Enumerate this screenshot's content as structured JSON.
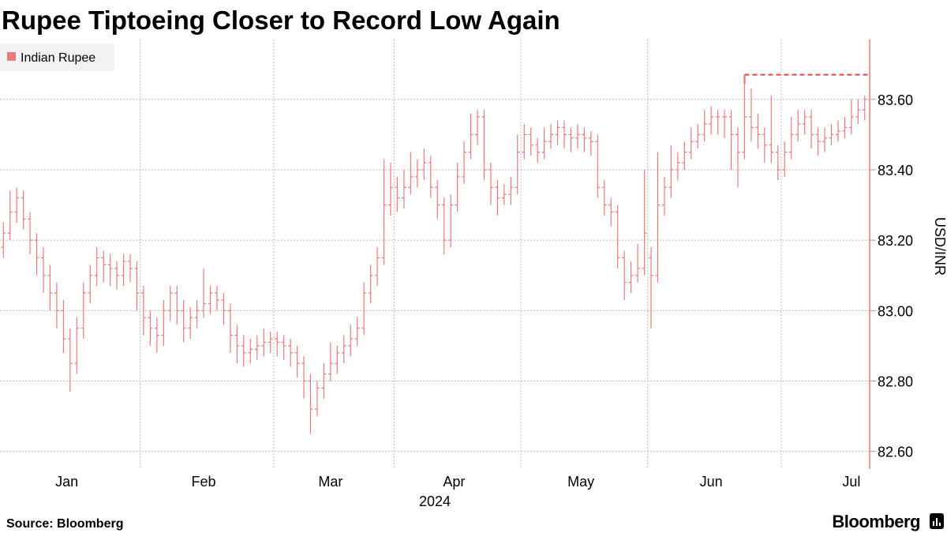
{
  "chart_data": {
    "type": "ohlc",
    "title": "Rupee Tiptoeing Closer to Record Low Again",
    "ylabel": "USD/INR",
    "xlabel": "2024",
    "source": "Source: Bloomberg",
    "brand": "Bloomberg",
    "xlim": [
      -0.5,
      129.5
    ],
    "xticks": [
      {
        "value": 9.5,
        "label": "Jan"
      },
      {
        "value": 30,
        "label": "Feb"
      },
      {
        "value": 49,
        "label": "Mar"
      },
      {
        "value": 67.5,
        "label": "Apr"
      },
      {
        "value": 86.5,
        "label": "May"
      },
      {
        "value": 106,
        "label": "Jun"
      },
      {
        "value": 127,
        "label": "Jul"
      }
    ],
    "xgrid": [
      20.5,
      40.5,
      58.5,
      77.5,
      96.5,
      116.5
    ],
    "ylim": [
      82.55,
      83.77
    ],
    "yticks": [
      {
        "value": 82.6,
        "label": "82.60"
      },
      {
        "value": 82.8,
        "label": "82.80"
      },
      {
        "value": 83.0,
        "label": "83.00"
      },
      {
        "value": 83.2,
        "label": "83.20"
      },
      {
        "value": 83.4,
        "label": "83.40"
      },
      {
        "value": 83.6,
        "label": "83.60"
      }
    ],
    "grid": true,
    "legend": "top-left",
    "record_high": 83.67,
    "record_color": "#e8404a",
    "series": [
      {
        "name": "Indian Rupee",
        "color": "#ec7a7c",
        "values": [
          [
            83.18,
            83.25,
            83.15,
            83.22
          ],
          [
            83.22,
            83.34,
            83.2,
            83.28
          ],
          [
            83.28,
            83.35,
            83.25,
            83.32
          ],
          [
            83.32,
            83.34,
            83.23,
            83.26
          ],
          [
            83.26,
            83.28,
            83.16,
            83.2
          ],
          [
            83.2,
            83.22,
            83.1,
            83.15
          ],
          [
            83.15,
            83.18,
            83.05,
            83.1
          ],
          [
            83.1,
            83.13,
            83.0,
            83.05
          ],
          [
            83.05,
            83.08,
            82.95,
            83.0
          ],
          [
            83.0,
            83.03,
            82.88,
            82.92
          ],
          [
            82.92,
            82.95,
            82.77,
            82.85
          ],
          [
            82.85,
            82.98,
            82.82,
            82.95
          ],
          [
            82.95,
            83.08,
            82.92,
            83.05
          ],
          [
            83.05,
            83.13,
            83.02,
            83.1
          ],
          [
            83.1,
            83.18,
            83.07,
            83.15
          ],
          [
            83.15,
            83.17,
            83.08,
            83.13
          ],
          [
            83.13,
            83.16,
            83.07,
            83.12
          ],
          [
            83.12,
            83.14,
            83.06,
            83.1
          ],
          [
            83.1,
            83.16,
            83.07,
            83.14
          ],
          [
            83.14,
            83.16,
            83.08,
            83.12
          ],
          [
            83.12,
            83.14,
            83.0,
            83.05
          ],
          [
            83.05,
            83.07,
            82.93,
            82.98
          ],
          [
            82.98,
            83.0,
            82.9,
            82.95
          ],
          [
            82.95,
            82.98,
            82.88,
            82.93
          ],
          [
            82.93,
            83.03,
            82.9,
            83.0
          ],
          [
            83.0,
            83.07,
            82.97,
            83.05
          ],
          [
            83.05,
            83.07,
            82.96,
            83.0
          ],
          [
            83.0,
            83.03,
            82.91,
            82.95
          ],
          [
            82.95,
            83.01,
            82.92,
            82.98
          ],
          [
            82.98,
            83.03,
            82.95,
            83.0
          ],
          [
            83.0,
            83.12,
            82.98,
            83.02
          ],
          [
            83.02,
            83.07,
            82.99,
            83.05
          ],
          [
            83.05,
            83.07,
            83.0,
            83.03
          ],
          [
            83.03,
            83.05,
            82.96,
            83.0
          ],
          [
            83.0,
            83.02,
            82.88,
            82.93
          ],
          [
            82.93,
            82.96,
            82.85,
            82.9
          ],
          [
            82.9,
            82.93,
            82.84,
            82.88
          ],
          [
            82.88,
            82.92,
            82.85,
            82.89
          ],
          [
            82.89,
            82.93,
            82.86,
            82.9
          ],
          [
            82.9,
            82.95,
            82.87,
            82.91
          ],
          [
            82.91,
            82.94,
            82.88,
            82.92
          ],
          [
            82.92,
            82.94,
            82.87,
            82.91
          ],
          [
            82.91,
            82.93,
            82.86,
            82.9
          ],
          [
            82.9,
            82.92,
            82.84,
            82.88
          ],
          [
            82.88,
            82.9,
            82.81,
            82.85
          ],
          [
            82.85,
            82.87,
            82.75,
            82.8
          ],
          [
            82.8,
            82.82,
            82.65,
            82.72
          ],
          [
            82.72,
            82.8,
            82.7,
            82.78
          ],
          [
            82.78,
            82.85,
            82.75,
            82.82
          ],
          [
            82.82,
            82.91,
            82.8,
            82.85
          ],
          [
            82.85,
            82.9,
            82.82,
            82.88
          ],
          [
            82.88,
            82.93,
            82.85,
            82.9
          ],
          [
            82.9,
            82.96,
            82.87,
            82.92
          ],
          [
            82.92,
            82.98,
            82.9,
            82.95
          ],
          [
            82.95,
            83.08,
            82.93,
            83.05
          ],
          [
            83.05,
            83.13,
            83.02,
            83.1
          ],
          [
            83.1,
            83.18,
            83.07,
            83.15
          ],
          [
            83.15,
            83.43,
            83.13,
            83.3
          ],
          [
            83.3,
            83.42,
            83.27,
            83.35
          ],
          [
            83.35,
            83.38,
            83.28,
            83.32
          ],
          [
            83.32,
            83.4,
            83.29,
            83.35
          ],
          [
            83.35,
            83.45,
            83.33,
            83.38
          ],
          [
            83.38,
            83.43,
            83.35,
            83.4
          ],
          [
            83.4,
            83.46,
            83.37,
            83.42
          ],
          [
            83.42,
            83.44,
            83.32,
            83.35
          ],
          [
            83.35,
            83.37,
            83.26,
            83.3
          ],
          [
            83.3,
            83.32,
            83.16,
            83.2
          ],
          [
            83.2,
            83.33,
            83.18,
            83.3
          ],
          [
            83.3,
            83.42,
            83.28,
            83.38
          ],
          [
            83.38,
            83.48,
            83.36,
            83.45
          ],
          [
            83.45,
            83.56,
            83.43,
            83.5
          ],
          [
            83.5,
            83.57,
            83.47,
            83.55
          ],
          [
            83.55,
            83.57,
            83.37,
            83.4
          ],
          [
            83.4,
            83.42,
            83.3,
            83.35
          ],
          [
            83.35,
            83.37,
            83.27,
            83.32
          ],
          [
            83.32,
            83.36,
            83.3,
            83.33
          ],
          [
            83.33,
            83.38,
            83.3,
            83.35
          ],
          [
            83.35,
            83.5,
            83.33,
            83.45
          ],
          [
            83.45,
            83.53,
            83.43,
            83.5
          ],
          [
            83.5,
            83.52,
            83.44,
            83.47
          ],
          [
            83.47,
            83.49,
            83.42,
            83.45
          ],
          [
            83.45,
            83.52,
            83.43,
            83.48
          ],
          [
            83.48,
            83.53,
            83.46,
            83.5
          ],
          [
            83.5,
            83.54,
            83.47,
            83.52
          ],
          [
            83.52,
            83.54,
            83.46,
            83.5
          ],
          [
            83.5,
            83.52,
            83.45,
            83.49
          ],
          [
            83.49,
            83.53,
            83.46,
            83.5
          ],
          [
            83.5,
            83.52,
            83.45,
            83.49
          ],
          [
            83.49,
            83.51,
            83.44,
            83.48
          ],
          [
            83.48,
            83.5,
            83.32,
            83.35
          ],
          [
            83.35,
            83.37,
            83.27,
            83.3
          ],
          [
            83.3,
            83.32,
            83.24,
            83.28
          ],
          [
            83.28,
            83.3,
            83.12,
            83.15
          ],
          [
            83.15,
            83.17,
            83.03,
            83.08
          ],
          [
            83.08,
            83.14,
            83.05,
            83.1
          ],
          [
            83.1,
            83.19,
            83.08,
            83.12
          ],
          [
            83.12,
            83.4,
            83.1,
            83.22
          ],
          [
            83.15,
            83.18,
            82.95,
            83.1
          ],
          [
            83.1,
            83.45,
            83.08,
            83.3
          ],
          [
            83.3,
            83.38,
            83.27,
            83.35
          ],
          [
            83.35,
            83.47,
            83.32,
            83.4
          ],
          [
            83.4,
            83.45,
            83.37,
            83.42
          ],
          [
            83.42,
            83.48,
            83.4,
            83.45
          ],
          [
            83.45,
            83.52,
            83.43,
            83.48
          ],
          [
            83.48,
            83.53,
            83.46,
            83.5
          ],
          [
            83.5,
            83.57,
            83.48,
            83.53
          ],
          [
            83.53,
            83.58,
            83.5,
            83.55
          ],
          [
            83.55,
            83.57,
            83.5,
            83.55
          ],
          [
            83.55,
            83.57,
            83.49,
            83.55
          ],
          [
            83.55,
            83.57,
            83.4,
            83.5
          ],
          [
            83.5,
            83.52,
            83.35,
            83.45
          ],
          [
            83.45,
            83.67,
            83.43,
            83.55
          ],
          [
            83.55,
            83.63,
            83.48,
            83.52
          ],
          [
            83.52,
            83.56,
            83.46,
            83.5
          ],
          [
            83.5,
            83.52,
            83.42,
            83.47
          ],
          [
            83.47,
            83.61,
            83.42,
            83.45
          ],
          [
            83.45,
            83.47,
            83.37,
            83.4
          ],
          [
            83.4,
            83.48,
            83.38,
            83.45
          ],
          [
            83.45,
            83.55,
            83.43,
            83.5
          ],
          [
            83.5,
            83.57,
            83.48,
            83.53
          ],
          [
            83.53,
            83.57,
            83.5,
            83.55
          ],
          [
            83.55,
            83.57,
            83.46,
            83.5
          ],
          [
            83.5,
            83.52,
            83.44,
            83.48
          ],
          [
            83.48,
            83.52,
            83.45,
            83.49
          ],
          [
            83.49,
            83.53,
            83.47,
            83.5
          ],
          [
            83.5,
            83.54,
            83.48,
            83.51
          ],
          [
            83.51,
            83.55,
            83.49,
            83.52
          ],
          [
            83.52,
            83.6,
            83.5,
            83.55
          ],
          [
            83.55,
            83.6,
            83.53,
            83.57
          ],
          [
            83.57,
            83.61,
            83.54,
            83.6
          ]
        ]
      }
    ]
  }
}
